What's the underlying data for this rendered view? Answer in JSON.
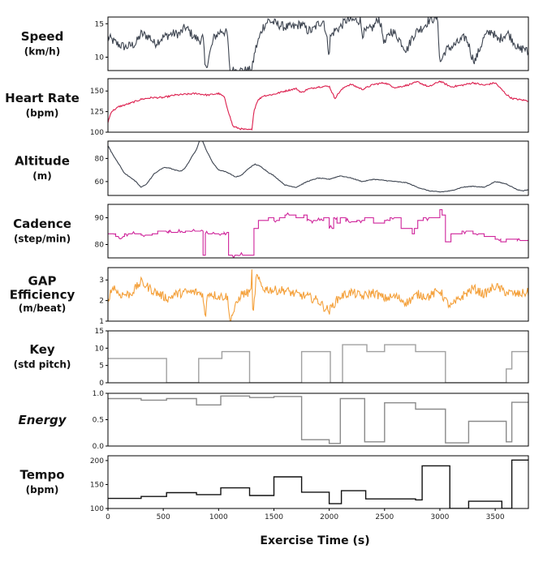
{
  "chart_data": {
    "type": "line",
    "xlabel": "Exercise Time (s)",
    "xlim": [
      0,
      3800
    ],
    "xticks": [
      0,
      500,
      1000,
      1500,
      2000,
      2500,
      3000,
      3500
    ],
    "panels": [
      {
        "id": "speed",
        "label": [
          "Speed",
          "(km/h)"
        ],
        "ylim": [
          8,
          16
        ],
        "yticks": [
          10,
          15
        ],
        "color": "#3d4450",
        "style": "noisy",
        "step": false,
        "x": [
          0,
          80,
          160,
          250,
          300,
          380,
          420,
          500,
          580,
          650,
          700,
          780,
          830,
          860,
          880,
          960,
          1030,
          1080,
          1100,
          1200,
          1300,
          1330,
          1400,
          1450,
          1520,
          1600,
          1680,
          1750,
          1800,
          1850,
          1900,
          1950,
          2000,
          2010,
          2050,
          2100,
          2150,
          2220,
          2280,
          2300,
          2350,
          2400,
          2450,
          2500,
          2560,
          2620,
          2700,
          2750,
          2800,
          2850,
          2900,
          2980,
          3000,
          3050,
          3150,
          3230,
          3260,
          3290,
          3320,
          3400,
          3470,
          3520,
          3560,
          3600,
          3620,
          3680,
          3720,
          3760,
          3800
        ],
        "y": [
          13,
          12,
          11.5,
          12,
          13.5,
          13,
          12,
          13,
          13.5,
          13.5,
          14.5,
          13,
          12.5,
          13,
          8,
          13,
          14,
          13.5,
          8,
          8,
          8,
          11,
          14.5,
          15.5,
          15,
          14.5,
          14.5,
          15,
          14,
          14,
          15,
          15.5,
          10.5,
          13,
          14,
          14.5,
          15.5,
          15.5,
          15.5,
          13.5,
          14,
          14.5,
          16,
          12,
          14,
          13,
          11,
          13,
          14,
          14.5,
          15.5,
          16,
          9,
          11,
          12,
          13,
          12,
          10,
          9.5,
          13,
          14,
          12.5,
          13,
          13.5,
          13.5,
          12,
          11,
          11.5,
          10.5
        ],
        "noise": 0.7
      },
      {
        "id": "heart_rate",
        "label": [
          "Heart Rate",
          "(bpm)"
        ],
        "ylim": [
          100,
          165
        ],
        "yticks": [
          100,
          125,
          150
        ],
        "color": "#dc1f4e",
        "style": "smooth",
        "step": false,
        "x": [
          0,
          30,
          100,
          200,
          300,
          400,
          500,
          600,
          700,
          800,
          900,
          1000,
          1050,
          1100,
          1130,
          1200,
          1250,
          1300,
          1320,
          1350,
          1400,
          1500,
          1600,
          1700,
          1750,
          1800,
          1900,
          2000,
          2050,
          2100,
          2150,
          2200,
          2300,
          2400,
          2500,
          2600,
          2700,
          2800,
          2900,
          3000,
          3100,
          3200,
          3300,
          3400,
          3500,
          3600,
          3650,
          3700,
          3800
        ],
        "y": [
          112,
          125,
          131,
          135,
          140,
          142,
          142,
          145,
          146,
          147,
          145,
          147,
          143,
          120,
          107,
          104,
          103,
          103,
          126,
          138,
          144,
          146,
          150,
          153,
          148,
          152,
          155,
          156,
          141,
          150,
          156,
          158,
          152,
          158,
          160,
          154,
          157,
          161,
          155,
          162,
          155,
          157,
          160,
          157,
          160,
          146,
          141,
          140,
          138
        ],
        "noise": 1.0
      },
      {
        "id": "altitude",
        "label": [
          "Altitude",
          "(m)"
        ],
        "ylim": [
          48,
          95
        ],
        "yticks": [
          60,
          80
        ],
        "color": "#3d4450",
        "style": "smooth",
        "step": false,
        "x": [
          0,
          40,
          100,
          150,
          200,
          250,
          300,
          350,
          420,
          500,
          550,
          600,
          660,
          700,
          750,
          800,
          830,
          850,
          900,
          950,
          1000,
          1050,
          1100,
          1150,
          1200,
          1280,
          1330,
          1380,
          1450,
          1500,
          1550,
          1600,
          1700,
          1800,
          1900,
          2000,
          2100,
          2200,
          2300,
          2400,
          2500,
          2600,
          2700,
          2800,
          2900,
          3000,
          3100,
          3200,
          3300,
          3400,
          3500,
          3600,
          3700,
          3750,
          3800
        ],
        "y": [
          91,
          84,
          75,
          67,
          64,
          60,
          55,
          58,
          67,
          72,
          72,
          70,
          69,
          72,
          80,
          88,
          96,
          96,
          85,
          76,
          70,
          69,
          67,
          64,
          65,
          72,
          75,
          73,
          68,
          65,
          61,
          57,
          55,
          60,
          63,
          62,
          65,
          63,
          60,
          62,
          61,
          60,
          59,
          55,
          52,
          51,
          52,
          55,
          56,
          55,
          60,
          58,
          53,
          52,
          53
        ],
        "noise": 0.3
      },
      {
        "id": "cadence",
        "label": [
          "Cadence",
          "(step/min)"
        ],
        "ylim": [
          75,
          95
        ],
        "yticks": [
          80,
          90
        ],
        "color": "#cf259b",
        "style": "step",
        "step": true,
        "x": [
          0,
          70,
          150,
          300,
          400,
          450,
          550,
          700,
          860,
          870,
          880,
          1050,
          1090,
          1100,
          1300,
          1320,
          1360,
          1450,
          1500,
          1550,
          1600,
          1700,
          1770,
          1800,
          1950,
          2000,
          2040,
          2070,
          2100,
          2150,
          2250,
          2320,
          2400,
          2500,
          2550,
          2650,
          2750,
          2770,
          2800,
          2850,
          2950,
          3000,
          3020,
          3050,
          3100,
          3200,
          3300,
          3400,
          3500,
          3550,
          3600,
          3700,
          3800
        ],
        "y": [
          84,
          83,
          84,
          83.5,
          84,
          85,
          84.5,
          85,
          76,
          76,
          84,
          84.5,
          76,
          76,
          76,
          86,
          89,
          90,
          89,
          90,
          91,
          90,
          91,
          89,
          90,
          86,
          90,
          88,
          90,
          88.5,
          89,
          90,
          88,
          89,
          90,
          86,
          84,
          86,
          89,
          90,
          90,
          93,
          91,
          81,
          84,
          85,
          84,
          83,
          82,
          81,
          82,
          81.5,
          82
        ],
        "noise": 0.8
      },
      {
        "id": "gap_efficiency",
        "label": [
          "GAP",
          "Efficiency",
          "(m/beat)"
        ],
        "ylim": [
          1,
          3.6
        ],
        "yticks": [
          1,
          2,
          3
        ],
        "color": "#f4a03a",
        "style": "noisy",
        "step": false,
        "x": [
          0,
          50,
          100,
          200,
          300,
          400,
          500,
          550,
          600,
          700,
          800,
          860,
          880,
          900,
          1000,
          1080,
          1100,
          1200,
          1290,
          1300,
          1310,
          1340,
          1400,
          1500,
          1600,
          1700,
          1800,
          1900,
          1950,
          2000,
          2050,
          2100,
          2200,
          2300,
          2400,
          2500,
          2600,
          2700,
          2800,
          2900,
          3000,
          3050,
          3100,
          3200,
          3300,
          3400,
          3500,
          3600,
          3700,
          3800
        ],
        "y": [
          2.1,
          2.7,
          2.3,
          2.3,
          2.9,
          2.5,
          2.2,
          2.1,
          2.3,
          2.4,
          2.4,
          2.3,
          1.0,
          2.4,
          2.2,
          2.2,
          1.0,
          2.3,
          2.4,
          3.5,
          1.0,
          3.2,
          2.6,
          2.5,
          2.5,
          2.3,
          2.2,
          2.0,
          1.7,
          1.5,
          1.9,
          2.2,
          2.4,
          2.2,
          2.4,
          2.1,
          2.2,
          1.9,
          2.3,
          2.2,
          2.5,
          2.0,
          1.7,
          2.2,
          2.6,
          2.3,
          2.7,
          2.4,
          2.3,
          2.4
        ],
        "noise": 0.22
      },
      {
        "id": "key",
        "label": [
          "Key",
          "(std pitch)"
        ],
        "ylim": [
          0,
          15
        ],
        "yticks": [
          0,
          5,
          10,
          15
        ],
        "color": "#a0a0a0",
        "style": "step",
        "step": true,
        "x": [
          0,
          530,
          820,
          1030,
          1280,
          1750,
          2010,
          2120,
          2340,
          2500,
          2780,
          3050,
          3280,
          3600,
          3650,
          3800
        ],
        "y": [
          7,
          0,
          7,
          9,
          0,
          9,
          0,
          11,
          9,
          11,
          9,
          0,
          0,
          4,
          9,
          9
        ]
      },
      {
        "id": "energy",
        "label": [
          "Energy"
        ],
        "italic": true,
        "ylim": [
          0,
          1
        ],
        "yticks": [
          0.0,
          0.5,
          1.0
        ],
        "tick_decimals": 1,
        "color": "#8a8a8a",
        "style": "step",
        "step": true,
        "x": [
          0,
          300,
          530,
          800,
          1020,
          1280,
          1500,
          1750,
          2000,
          2100,
          2320,
          2500,
          2780,
          3050,
          3260,
          3600,
          3650,
          3800
        ],
        "y": [
          0.9,
          0.87,
          0.9,
          0.78,
          0.95,
          0.92,
          0.94,
          0.12,
          0.05,
          0.9,
          0.08,
          0.82,
          0.7,
          0.06,
          0.47,
          0.08,
          0.83,
          0.83
        ]
      },
      {
        "id": "tempo",
        "label": [
          "Tempo",
          "(bpm)"
        ],
        "ylim": [
          100,
          210
        ],
        "yticks": [
          100,
          150,
          200
        ],
        "color": "#111111",
        "style": "step",
        "step": true,
        "x": [
          0,
          300,
          530,
          800,
          1020,
          1280,
          1500,
          1750,
          2000,
          2110,
          2330,
          2780,
          2840,
          3090,
          3260,
          3560,
          3650,
          3800
        ],
        "y": [
          121,
          125,
          133,
          129,
          143,
          127,
          166,
          134,
          110,
          137,
          120,
          118,
          189,
          100,
          115,
          100,
          201,
          201
        ]
      }
    ]
  }
}
